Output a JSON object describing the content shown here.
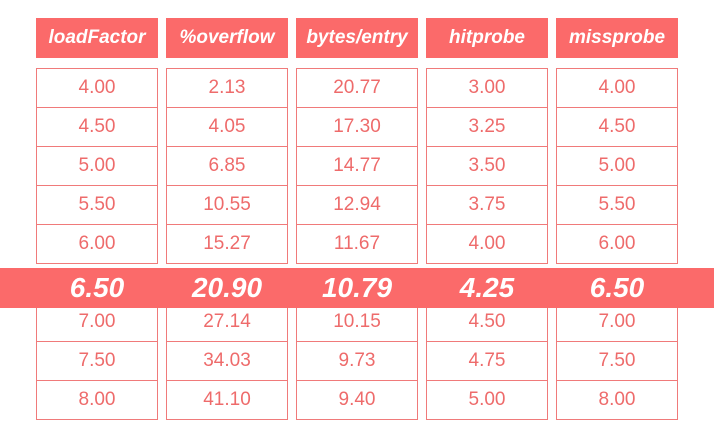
{
  "headers": [
    "loadFactor",
    "%overflow",
    "bytes/entry",
    "hitprobe",
    "missprobe"
  ],
  "rows": [
    [
      "4.00",
      "2.13",
      "20.77",
      "3.00",
      "4.00"
    ],
    [
      "4.50",
      "4.05",
      "17.30",
      "3.25",
      "4.50"
    ],
    [
      "5.00",
      "6.85",
      "14.77",
      "3.50",
      "5.00"
    ],
    [
      "5.50",
      "10.55",
      "12.94",
      "3.75",
      "5.50"
    ],
    [
      "6.00",
      "15.27",
      "11.67",
      "4.00",
      "6.00"
    ],
    [
      "6.50",
      "20.90",
      "10.79",
      "4.25",
      "6.50"
    ],
    [
      "7.00",
      "27.14",
      "10.15",
      "4.50",
      "7.00"
    ],
    [
      "7.50",
      "34.03",
      "9.73",
      "4.75",
      "7.50"
    ],
    [
      "8.00",
      "41.10",
      "9.40",
      "5.00",
      "8.00"
    ]
  ],
  "highlight_row": 5,
  "colors": {
    "accent": "#fb6a6a",
    "cell_text": "#ee6b6b",
    "cell_border": "#f07a7a",
    "header_text": "#ffffff"
  }
}
